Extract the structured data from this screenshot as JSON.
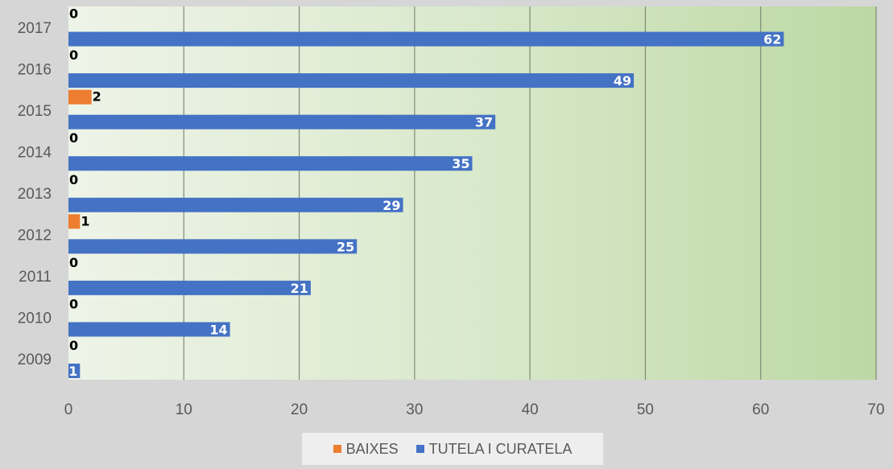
{
  "chart_data": {
    "type": "bar",
    "orientation": "horizontal",
    "categories": [
      "2009",
      "2010",
      "2011",
      "2012",
      "2013",
      "2014",
      "2015",
      "2016",
      "2017"
    ],
    "series": [
      {
        "name": "BAIXES",
        "color": "#ed7d31",
        "values": [
          0,
          0,
          0,
          1,
          0,
          0,
          2,
          0,
          0
        ]
      },
      {
        "name": "TUTELA I CURATELA",
        "color": "#4472c4",
        "values": [
          1,
          14,
          21,
          25,
          29,
          35,
          37,
          49,
          62
        ]
      }
    ],
    "xlim": [
      0,
      70
    ],
    "xticks": [
      0,
      10,
      20,
      30,
      40,
      50,
      60,
      70
    ],
    "grid": "vertical",
    "legend": "bottom",
    "data_labels": true
  }
}
